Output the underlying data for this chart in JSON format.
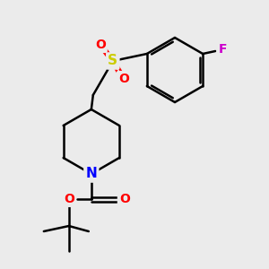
{
  "background_color": "#ebebeb",
  "bond_color": "#000000",
  "atom_colors": {
    "N": "#0000ff",
    "O": "#ff0000",
    "F": "#cc00cc",
    "S": "#cccc00",
    "C": "#000000"
  },
  "line_width": 1.8,
  "figsize": [
    3.0,
    3.0
  ],
  "dpi": 100
}
